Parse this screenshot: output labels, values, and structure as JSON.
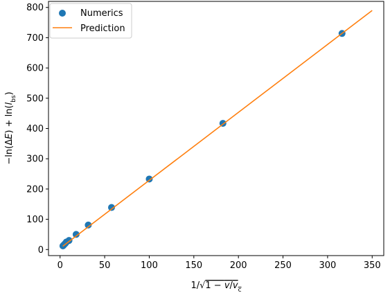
{
  "chart_data": {
    "type": "scatter",
    "title": "",
    "xlabel": "1/√(1 − v/v_c)",
    "ylabel": "−ln(ΔE) + ln(l_bs)",
    "xlim": [
      -13,
      363
    ],
    "ylim": [
      -20,
      820
    ],
    "xticks": [
      0,
      50,
      100,
      150,
      200,
      250,
      300,
      350
    ],
    "yticks": [
      0,
      100,
      200,
      300,
      400,
      500,
      600,
      700,
      800
    ],
    "grid": false,
    "legend_position": "top-left",
    "series": [
      {
        "name": "Numerics",
        "kind": "scatter",
        "color": "#1f77b4",
        "x": [
          3.2,
          4.5,
          5.8,
          7.1,
          10,
          18,
          31.6,
          57.7,
          100,
          182.6,
          316.2
        ],
        "y": [
          12,
          16,
          20,
          25,
          30,
          50,
          81,
          139,
          233,
          417,
          714
        ]
      },
      {
        "name": "Prediction",
        "kind": "line",
        "color": "#ff7f0e",
        "x": [
          3,
          350
        ],
        "y": [
          11,
          790
        ]
      }
    ]
  }
}
